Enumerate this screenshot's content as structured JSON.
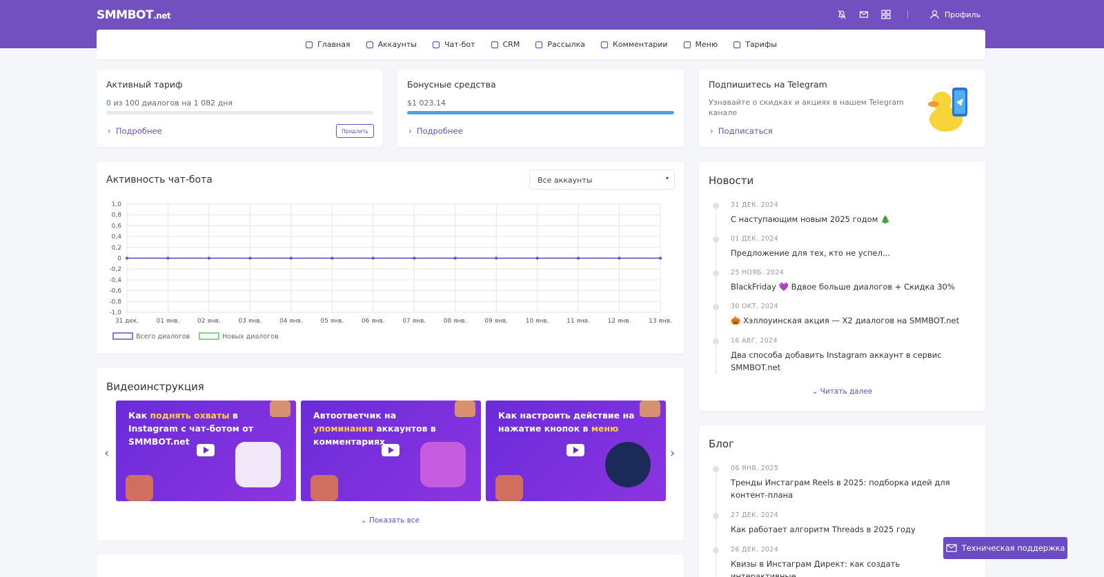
{
  "header": {
    "logo": "SMMBOT",
    "logo_suffix": ".net",
    "profile": "Профиль"
  },
  "nav": [
    "Главная",
    "Аккаунты",
    "Чат-бот",
    "CRM",
    "Рассылка",
    "Комментарии",
    "Меню",
    "Тарифы"
  ],
  "tariff": {
    "title": "Активный тариф",
    "used": 0,
    "text": "из 100 диалогов на 1 082 дня",
    "link": "Подробнее",
    "button": "Продлить"
  },
  "bonus": {
    "title": "Бонусные средства",
    "amount": "$1 023,14",
    "link": "Подробнее"
  },
  "telegram": {
    "title": "Подпишитесь на Telegram",
    "text": "Узнавайте о скидках и акциях в нашем Telegram канале",
    "link": "Подписаться"
  },
  "activity": {
    "title": "Активность чат-бота",
    "select": "Все аккаунты"
  },
  "chart_data": {
    "type": "line",
    "categories": [
      "31 дек.",
      "01 янв.",
      "02 янв.",
      "03 янв.",
      "04 янв.",
      "05 янв.",
      "06 янв.",
      "07 янв.",
      "08 янв.",
      "09 янв.",
      "10 янв.",
      "11 янв.",
      "12 янв.",
      "13 янв."
    ],
    "series": [
      {
        "name": "Всего диалогов",
        "color": "#6a4bc4",
        "values": [
          0,
          0,
          0,
          0,
          0,
          0,
          0,
          0,
          0,
          0,
          0,
          0,
          0,
          0
        ]
      },
      {
        "name": "Новых диалогов",
        "color": "#5cc85c",
        "values": [
          0,
          0,
          0,
          0,
          0,
          0,
          0,
          0,
          0,
          0,
          0,
          0,
          0,
          0
        ]
      }
    ],
    "ylim": [
      -1,
      1
    ],
    "yticks": [
      {
        "value": 1,
        "label": "1,0"
      },
      {
        "value": 0.8,
        "label": "0,8"
      },
      {
        "value": 0.6,
        "label": "0,6"
      },
      {
        "value": 0.4,
        "label": "0,4"
      },
      {
        "value": 0.2,
        "label": "0,2"
      },
      0,
      {
        "value": -0.2,
        "label": "-0,2"
      },
      {
        "value": -0.4,
        "label": "-0,4"
      },
      {
        "value": -0.6,
        "label": "-0,6"
      },
      {
        "value": -0.8,
        "label": "-0,8"
      },
      {
        "value": -1,
        "label": "-1,0"
      }
    ],
    "grid": true,
    "legend": "bottom-left"
  },
  "video": {
    "title": "Видеоинструкция",
    "cards": [
      {
        "segments": [
          {
            "text": "Как "
          },
          {
            "text": "поднять охваты",
            "highlight": true
          },
          {
            "text": " в Instagram с чат-ботом от SMMBOT.net"
          }
        ]
      },
      {
        "segments": [
          {
            "text": "Автоответчик на "
          },
          {
            "text": "упоминания",
            "highlight": true
          },
          {
            "text": " аккаунтов в комментариях"
          }
        ]
      },
      {
        "segments": [
          {
            "text": "Как настроить действие на нажатие кнопок в "
          },
          {
            "text": "меню",
            "highlight": true
          }
        ]
      }
    ],
    "more": "Показать все"
  },
  "news": {
    "title": "Новости",
    "items": [
      {
        "date": "31 дек. 2024",
        "text": "С наступающим новым 2025 годом 🎄"
      },
      {
        "date": "01 дек. 2024",
        "text": "Предложение для тех, кто не успел..."
      },
      {
        "date": "25 нояб. 2024",
        "text": "BlackFriday 💜 Вдвое больше диалогов + Скидка 30%"
      },
      {
        "date": "30 окт. 2024",
        "text": "🎃 Хэллоуинская акция — X2 диалогов на SMMBOT.net"
      },
      {
        "date": "16 авг. 2024",
        "text": "Два способа добавить Instagram аккаунт в сервис SMMBOT.net"
      }
    ],
    "more": "Читать далее"
  },
  "blog": {
    "title": "Блог",
    "items": [
      {
        "date": "06 янв. 2025",
        "text": "Тренды Инстаграм Reels в 2025: подборка идей для контент-плана"
      },
      {
        "date": "27 дек. 2024",
        "text": "Как работает алгоритм Threads в 2025 году"
      },
      {
        "date": "26 дек. 2024",
        "text": "Квизы в Инстаграм Директ: как создать интерактивные"
      }
    ]
  },
  "support": "Техническая поддержка"
}
